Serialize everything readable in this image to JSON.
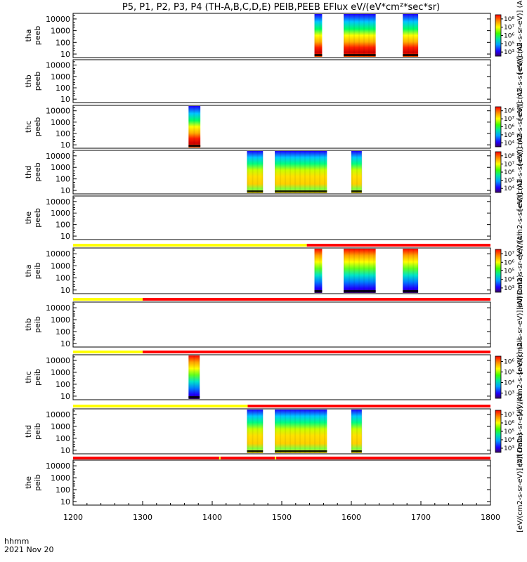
{
  "title": "P5, P1, P2, P3, P4 (TH-A,B,C,D,E) PEIB,PEEB EFlux eV/(eV*cm²*sec*sr)",
  "footer": {
    "line1": "hhmm",
    "line2": "2021 Nov 20"
  },
  "colors": {
    "status_ok": "#ffff00",
    "status_bad": "#ff0000",
    "data_gap": "#ffffff",
    "axes": "#000000"
  },
  "chart_data": {
    "type": "heatmap",
    "x_axis": {
      "range": [
        1200,
        1800
      ],
      "ticks": [
        "1200",
        "1300",
        "1400",
        "1500",
        "1600",
        "1700",
        "1800"
      ]
    },
    "y_axis": {
      "scale": "log",
      "ticks": [
        "10",
        "100",
        "1000",
        "10000"
      ]
    },
    "colorbar_label": "[eV/(cm2-s-sr-eV)] (All Data)",
    "panels": [
      {
        "ylabel": [
          "tha",
          "peeb"
        ],
        "intervals": [
          [
            1547,
            1558
          ],
          [
            1589,
            1635
          ],
          [
            1674,
            1696
          ]
        ],
        "colorbar": [
          "10³",
          "10⁵",
          "10⁶",
          "10⁷",
          "10⁸"
        ],
        "colorbar_label": "[eV/(cm2-s-sr-eV)] (All"
      },
      {
        "ylabel": [
          "thb",
          "peeb"
        ],
        "intervals": [],
        "colorbar": [],
        "colorbar_label": "[eV/(cm2-s-sr-eV)] (All"
      },
      {
        "ylabel": [
          "thc",
          "peeb"
        ],
        "intervals": [
          [
            1366,
            1383
          ]
        ],
        "colorbar": [
          "10⁴",
          "10⁵",
          "10⁶",
          "10⁷",
          "10⁸"
        ],
        "colorbar_label": "[eV/(cm2-s-sr-eV)] (All"
      },
      {
        "ylabel": [
          "thd",
          "peeb"
        ],
        "intervals": [
          [
            1450,
            1473
          ],
          [
            1490,
            1565
          ],
          [
            1600,
            1615
          ]
        ],
        "colorbar": [
          "10⁴",
          "10⁵",
          "10⁶",
          "10⁷",
          "10⁸"
        ],
        "colorbar_label": "[eV/(cm2-s-sr-eV)] (All"
      },
      {
        "ylabel": [
          "the",
          "peeb"
        ],
        "intervals": [],
        "colorbar": [],
        "colorbar_label": "[eV/(cm2-s-sr-eV)] (All"
      },
      {
        "ylabel": [
          "tha",
          "peib"
        ],
        "intervals": [
          [
            1547,
            1558
          ],
          [
            1589,
            1635
          ],
          [
            1674,
            1696
          ]
        ],
        "colorbar": [
          "10³",
          "10⁴",
          "10⁵",
          "10⁶",
          "10⁷"
        ],
        "colorbar_label": "[eV/(cm2-s-sr-eV)] (All",
        "status_bar": [
          {
            "from": 1200,
            "to": 1536,
            "state": "ok"
          },
          {
            "from": 1536,
            "to": 1800,
            "state": "bad"
          }
        ]
      },
      {
        "ylabel": [
          "thb",
          "peib"
        ],
        "intervals": [],
        "colorbar": [],
        "colorbar_label": "[eV/(cm2-s-sr-eV)] (All Data)",
        "status_bar": [
          {
            "from": 1200,
            "to": 1300,
            "state": "ok"
          },
          {
            "from": 1300,
            "to": 1800,
            "state": "bad"
          }
        ]
      },
      {
        "ylabel": [
          "thc",
          "peib"
        ],
        "intervals": [
          [
            1366,
            1382
          ]
        ],
        "colorbar": [
          "10³",
          "10⁴",
          "10⁵",
          "10⁶"
        ],
        "colorbar_label": "[eV/(cm2-s-sr-eV)] (All",
        "status_bar": [
          {
            "from": 1200,
            "to": 1300,
            "state": "ok"
          },
          {
            "from": 1300,
            "to": 1800,
            "state": "bad"
          }
        ]
      },
      {
        "ylabel": [
          "thd",
          "peib"
        ],
        "intervals": [
          [
            1450,
            1473
          ],
          [
            1490,
            1565
          ],
          [
            1600,
            1615
          ]
        ],
        "colorbar": [
          "10³",
          "10⁴",
          "10⁵",
          "10⁶",
          "10⁷"
        ],
        "colorbar_label": "[eV/(cm2-s-sr-eV)] (All",
        "status_bar": [
          {
            "from": 1200,
            "to": 1451,
            "state": "ok"
          },
          {
            "from": 1451,
            "to": 1800,
            "state": "bad"
          }
        ]
      },
      {
        "ylabel": [
          "the",
          "peib"
        ],
        "intervals": [],
        "colorbar": [],
        "colorbar_label": "[eV/(cm2-s-sr-eV)] (All Data)",
        "status_bar": [
          {
            "from": 1200,
            "to": 1410,
            "state": "bad"
          },
          {
            "from": 1410,
            "to": 1412,
            "state": "ok"
          },
          {
            "from": 1412,
            "to": 1490,
            "state": "bad"
          },
          {
            "from": 1490,
            "to": 1492,
            "state": "ok"
          },
          {
            "from": 1492,
            "to": 1800,
            "state": "bad"
          }
        ]
      }
    ]
  }
}
